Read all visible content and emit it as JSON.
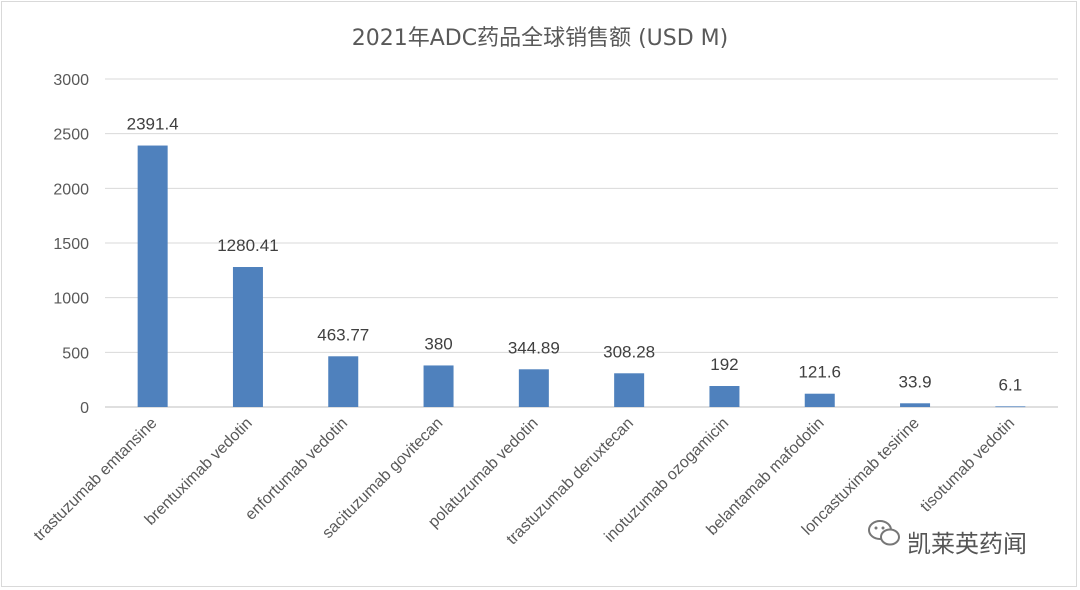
{
  "chart_data": {
    "type": "bar",
    "title": "2021年ADC药品全球销售额 (USD M)",
    "xlabel": "",
    "ylabel": "",
    "ylim": [
      0,
      3000
    ],
    "yticks": [
      "0",
      "500",
      "1000",
      "1500",
      "2000",
      "2500",
      "3000"
    ],
    "ytick_values": [
      0,
      500,
      1000,
      1500,
      2000,
      2500,
      3000
    ],
    "grid": true,
    "legend": "none",
    "bar_color": "#4f81bd",
    "categories": [
      "trastuzumab emtansine",
      "brentuximab vedotin",
      "enfortumab vedotin",
      "sacituzumab govitecan",
      "polatuzumab vedotin",
      "trastuzumab deruxtecan",
      "inotuzumab ozogamicin",
      "belantamab mafodotin",
      "loncastuximab tesirine",
      "tisotumab vedotin"
    ],
    "values": [
      2391.4,
      1280.41,
      463.77,
      380,
      344.89,
      308.28,
      192,
      121.6,
      33.9,
      6.1
    ],
    "data_labels": [
      "2391.4",
      "1280.41",
      "463.77",
      "380",
      "344.89",
      "308.28",
      "192",
      "121.6",
      "33.9",
      "6.1"
    ]
  },
  "watermark": {
    "text": "凯莱英药闻",
    "icon": "wechat-icon"
  }
}
